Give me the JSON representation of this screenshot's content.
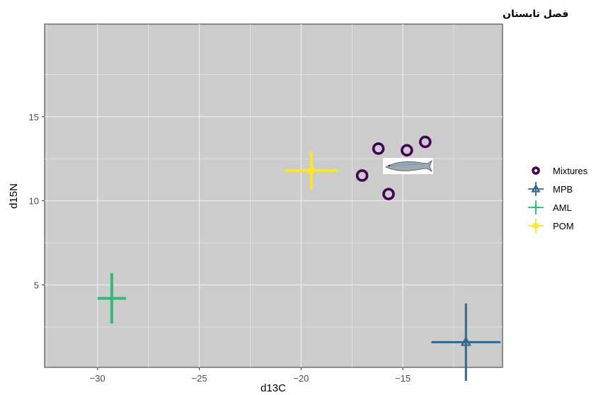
{
  "chart_data": {
    "type": "scatter",
    "title": "فصل تابستان",
    "xlabel": "d13C",
    "ylabel": "d15N",
    "xlim": [
      -32.6,
      -10.1
    ],
    "ylim": [
      0.1,
      20.5
    ],
    "x_ticks": [
      -30,
      -25,
      -20,
      -15
    ],
    "x_tick_labels": [
      "−30",
      "−25",
      "−20",
      "−15"
    ],
    "y_ticks": [
      5,
      10,
      15
    ],
    "y_tick_labels": [
      "5",
      "10",
      "15"
    ],
    "grid": true,
    "legend_position": "right",
    "mixtures": {
      "name": "Mixtures",
      "color": "#440154",
      "x": [
        -17.0,
        -16.2,
        -15.7,
        -14.8,
        -13.9
      ],
      "y": [
        11.5,
        13.1,
        10.4,
        13.0,
        13.5
      ]
    },
    "sources": [
      {
        "name": "MPB",
        "color": "#31688e",
        "marker": "triangle",
        "x": -11.9,
        "y": 1.6,
        "x_err": 1.7,
        "y_err": 2.3
      },
      {
        "name": "AML",
        "color": "#35b779",
        "marker": "plus",
        "x": -29.3,
        "y": 4.2,
        "x_err": 0.7,
        "y_err": 1.5
      },
      {
        "name": "POM",
        "color": "#fde725",
        "marker": "asterisk",
        "x": -19.5,
        "y": 11.8,
        "x_err": 1.3,
        "y_err": 1.1
      }
    ],
    "colors": {
      "panel": "#cccccc",
      "grid": "#ececec"
    }
  }
}
